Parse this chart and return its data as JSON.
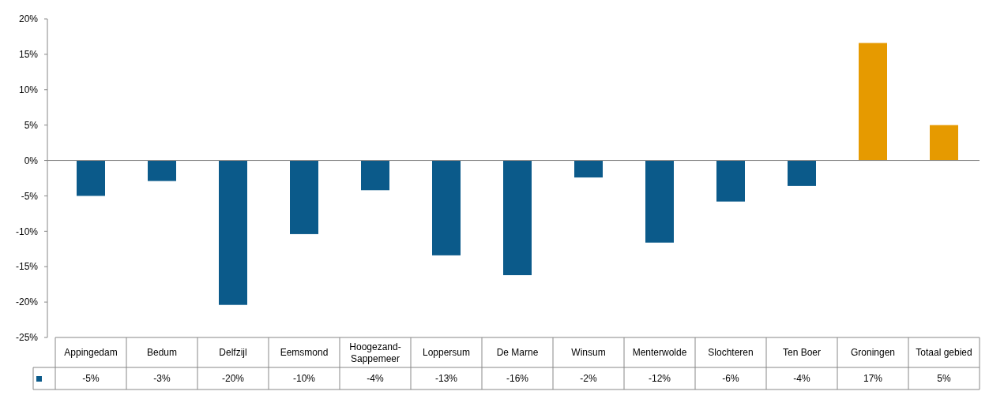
{
  "chart_data": {
    "type": "bar",
    "categories": [
      "Appingedam",
      "Bedum",
      "Delfzijl",
      "Eemsmond",
      "Hoogezand-Sappemeer",
      "Loppersum",
      "De Marne",
      "Winsum",
      "Menterwolde",
      "Slochteren",
      "Ten Boer",
      "Groningen",
      "Totaal gebied"
    ],
    "values": [
      -5.0,
      -2.9,
      -20.4,
      -10.4,
      -4.2,
      -13.4,
      -16.2,
      -2.4,
      -11.6,
      -5.8,
      -3.6,
      16.6,
      5.0
    ],
    "colors": [
      "#0b5a8a",
      "#0b5a8a",
      "#0b5a8a",
      "#0b5a8a",
      "#0b5a8a",
      "#0b5a8a",
      "#0b5a8a",
      "#0b5a8a",
      "#0b5a8a",
      "#0b5a8a",
      "#0b5a8a",
      "#e69a00",
      "#e69a00"
    ],
    "value_labels": [
      "-5%",
      "-3%",
      "-20%",
      "-10%",
      "-4%",
      "-13%",
      "-16%",
      "-2%",
      "-12%",
      "-6%",
      "-4%",
      "17%",
      "5%"
    ],
    "ylim": [
      -25,
      20
    ],
    "yticks": [
      {
        "value": -25,
        "label": "-25%"
      },
      {
        "value": -20,
        "label": "-20%"
      },
      {
        "value": -15,
        "label": "-15%"
      },
      {
        "value": -10,
        "label": "-10%"
      },
      {
        "value": -5,
        "label": "-5%"
      },
      {
        "value": 0,
        "label": "0%"
      },
      {
        "value": 5,
        "label": "5%"
      },
      {
        "value": 10,
        "label": "10%"
      },
      {
        "value": 15,
        "label": "15%"
      },
      {
        "value": 20,
        "label": "20%"
      }
    ]
  }
}
